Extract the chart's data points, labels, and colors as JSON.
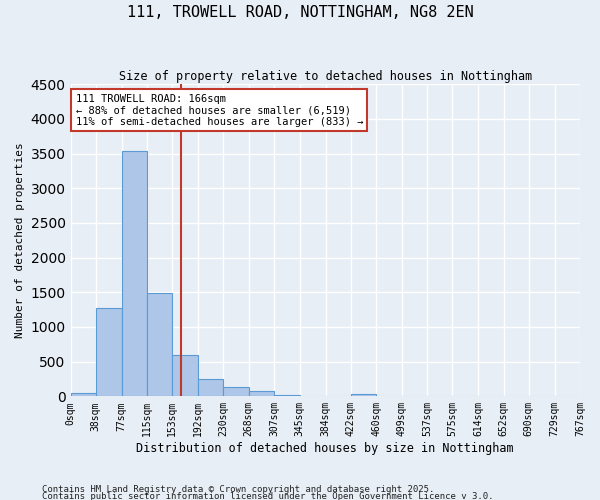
{
  "title1": "111, TROWELL ROAD, NOTTINGHAM, NG8 2EN",
  "title2": "Size of property relative to detached houses in Nottingham",
  "xlabel": "Distribution of detached houses by size in Nottingham",
  "ylabel": "Number of detached properties",
  "bar_color": "#aec6e8",
  "bar_edge_color": "#5b9bd5",
  "background_color": "#e8eef5",
  "grid_color": "#ffffff",
  "bin_edges": [
    0,
    38,
    77,
    115,
    153,
    192,
    230,
    268,
    307,
    345,
    384,
    422,
    460,
    499,
    537,
    575,
    614,
    652,
    690,
    729,
    767
  ],
  "bar_heights": [
    50,
    1280,
    3530,
    1490,
    600,
    250,
    130,
    80,
    20,
    10,
    10,
    40,
    5,
    0,
    0,
    0,
    0,
    0,
    0,
    0
  ],
  "tick_labels": [
    "0sqm",
    "38sqm",
    "77sqm",
    "115sqm",
    "153sqm",
    "192sqm",
    "230sqm",
    "268sqm",
    "307sqm",
    "345sqm",
    "384sqm",
    "422sqm",
    "460sqm",
    "499sqm",
    "537sqm",
    "575sqm",
    "614sqm",
    "652sqm",
    "690sqm",
    "729sqm",
    "767sqm"
  ],
  "ylim": [
    0,
    4500
  ],
  "yticks": [
    0,
    500,
    1000,
    1500,
    2000,
    2500,
    3000,
    3500,
    4000,
    4500
  ],
  "property_size": 166,
  "vline_color": "#c0392b",
  "annotation_line1": "111 TROWELL ROAD: 166sqm",
  "annotation_line2": "← 88% of detached houses are smaller (6,519)",
  "annotation_line3": "11% of semi-detached houses are larger (833) →",
  "annotation_box_color": "#c0392b",
  "footer1": "Contains HM Land Registry data © Crown copyright and database right 2025.",
  "footer2": "Contains public sector information licensed under the Open Government Licence v 3.0."
}
